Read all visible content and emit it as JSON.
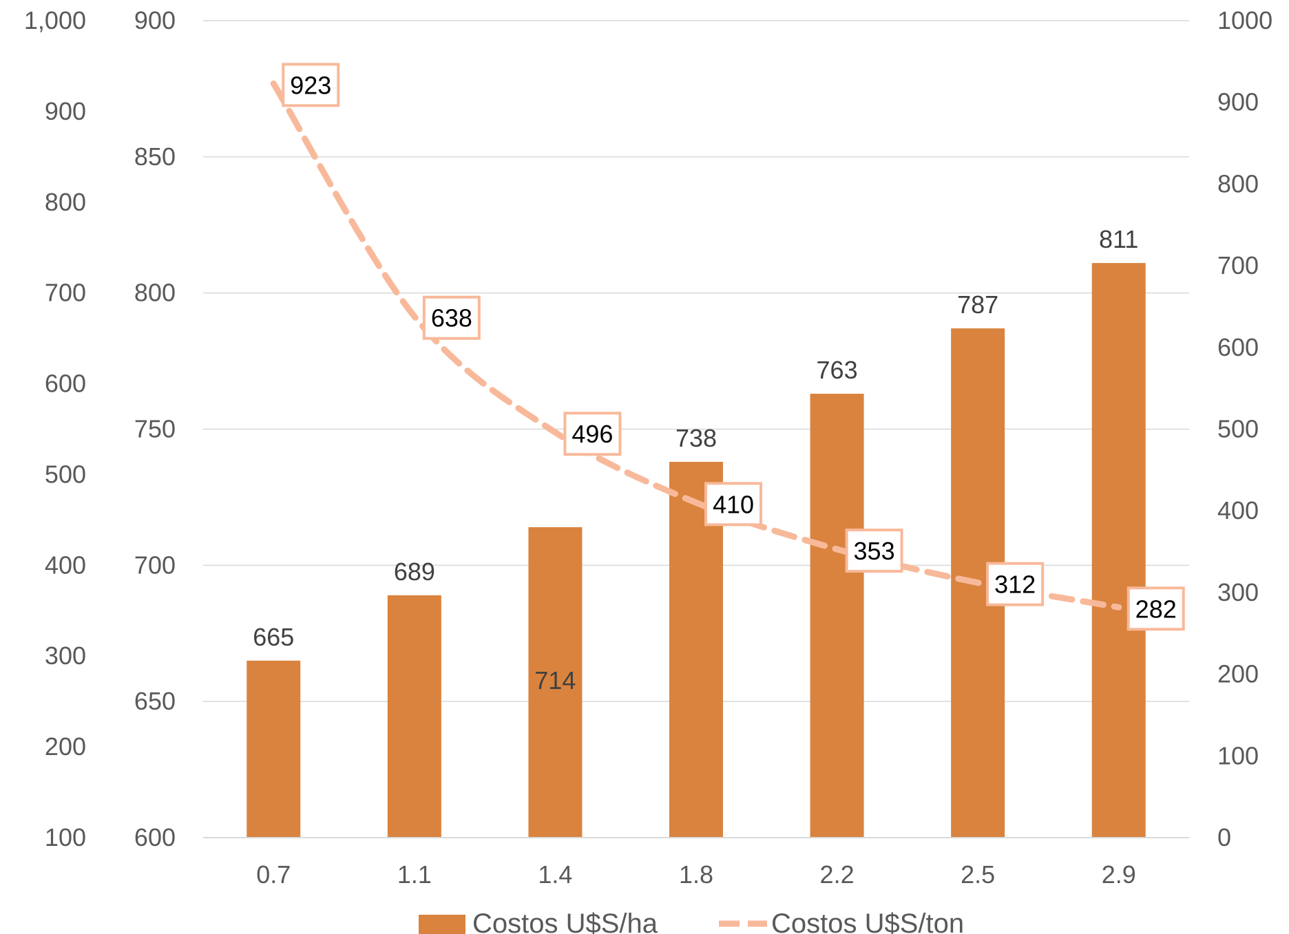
{
  "chart_data": {
    "type": "bar",
    "categories": [
      "0.7",
      "1.1",
      "1.4",
      "1.8",
      "2.2",
      "2.5",
      "2.9"
    ],
    "series": [
      {
        "name": "Costos U$S/ha",
        "type": "bar",
        "axis": "inner-left",
        "values": [
          665,
          689,
          714,
          738,
          763,
          787,
          811
        ],
        "labels": [
          "665",
          "689",
          "714",
          "738",
          "763",
          "787",
          "811"
        ]
      },
      {
        "name": "Costos U$S/ton",
        "type": "line",
        "style": "dashed",
        "axis": "right",
        "values": [
          923,
          638,
          496,
          410,
          353,
          312,
          282
        ],
        "labels": [
          "923",
          "638",
          "496",
          "410",
          "353",
          "312",
          "282"
        ]
      }
    ],
    "axes": {
      "outer_left": {
        "ticks": [
          "100",
          "200",
          "300",
          "400",
          "500",
          "600",
          "700",
          "800",
          "900",
          "1,000"
        ],
        "range": [
          100,
          1000
        ]
      },
      "inner_left": {
        "ticks": [
          "600",
          "650",
          "700",
          "750",
          "800",
          "850",
          "900"
        ],
        "range": [
          600,
          900
        ]
      },
      "right": {
        "ticks": [
          "0",
          "100",
          "200",
          "300",
          "400",
          "500",
          "600",
          "700",
          "800",
          "900",
          "1000"
        ],
        "range": [
          0,
          1000
        ]
      }
    },
    "grid": true,
    "legend_position": "bottom",
    "colors": {
      "bar": "#D9833E",
      "line": "#F8B99A",
      "grid": "#D9D9D9",
      "tick_text": "#595959"
    }
  }
}
